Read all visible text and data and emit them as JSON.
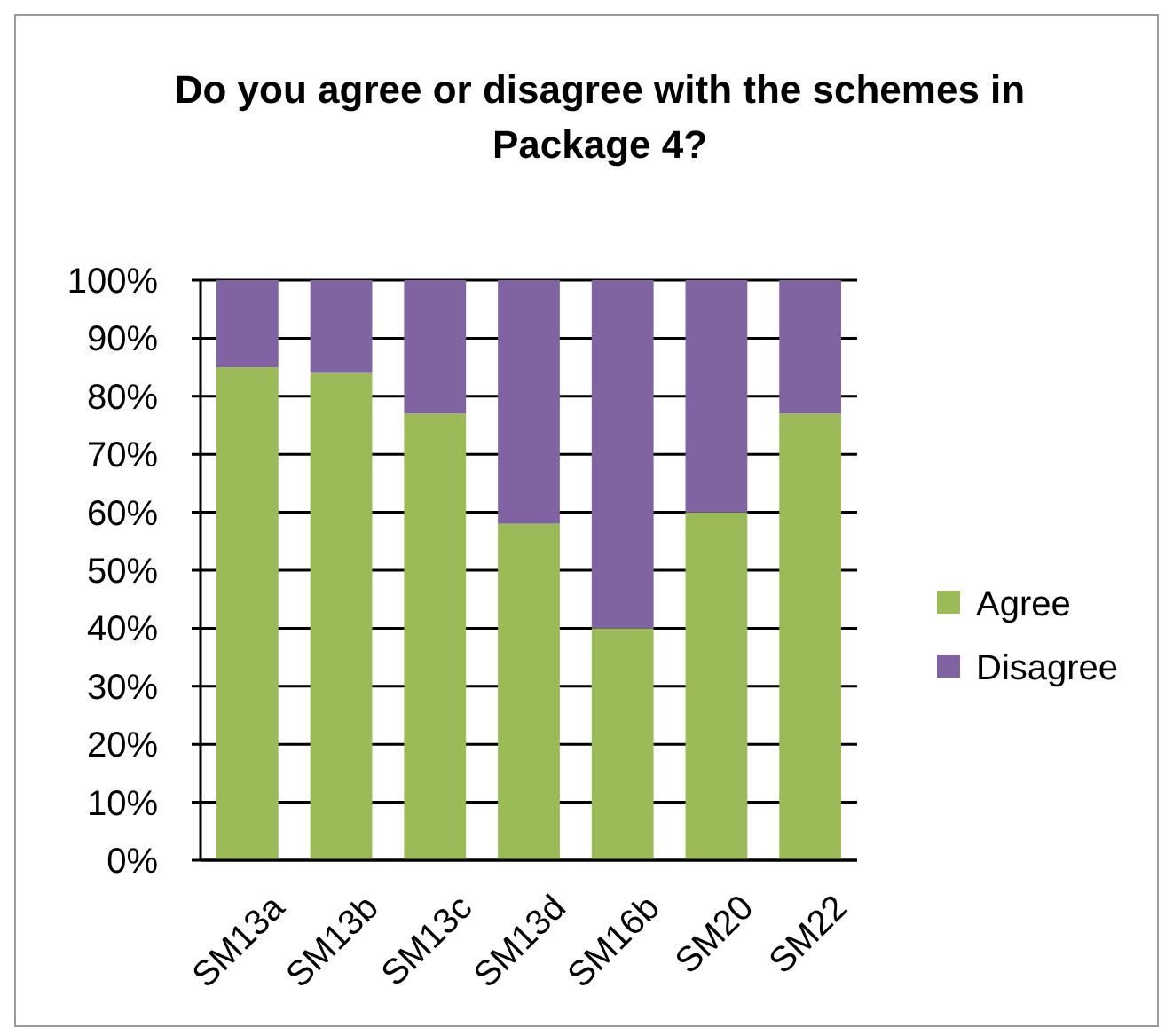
{
  "chart_data": {
    "type": "bar",
    "title": "Do you agree or disagree with the schemes in Package 4?",
    "categories": [
      "SM13a",
      "SM13b",
      "SM13c",
      "SM13d",
      "SM16b",
      "SM20",
      "SM22"
    ],
    "stacked": true,
    "series": [
      {
        "name": "Agree",
        "color": "#9bbb59",
        "values": [
          85,
          84,
          77,
          58,
          40,
          60,
          77
        ]
      },
      {
        "name": "Disagree",
        "color": "#8064a2",
        "values": [
          15,
          16,
          23,
          42,
          60,
          40,
          23
        ]
      }
    ],
    "ylim": [
      0,
      100
    ],
    "yticks": [
      {
        "value": 0,
        "label": "0%"
      },
      {
        "value": 10,
        "label": "10%"
      },
      {
        "value": 20,
        "label": "20%"
      },
      {
        "value": 30,
        "label": "30%"
      },
      {
        "value": 40,
        "label": "40%"
      },
      {
        "value": 50,
        "label": "50%"
      },
      {
        "value": 60,
        "label": "60%"
      },
      {
        "value": 70,
        "label": "70%"
      },
      {
        "value": 80,
        "label": "80%"
      },
      {
        "value": 90,
        "label": "90%"
      },
      {
        "value": 100,
        "label": "100%"
      }
    ],
    "grid": "y",
    "legend": "right"
  }
}
